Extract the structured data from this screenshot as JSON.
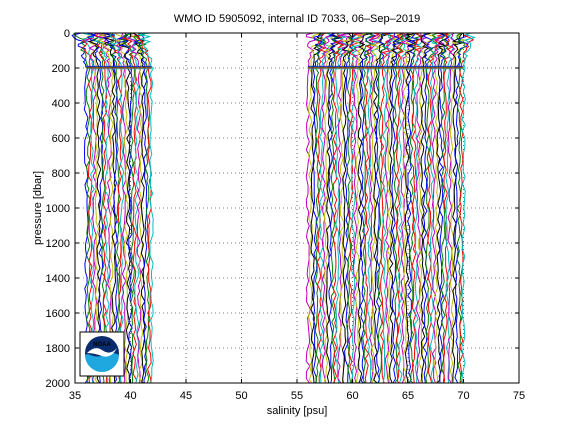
{
  "chart_data": {
    "type": "line",
    "title": "WMO ID 5905092, internal ID 7033, 06–Sep–2019",
    "xlabel": "salinity [psu]",
    "ylabel": "pressure [dbar]",
    "xlim": [
      35,
      75
    ],
    "ylim": [
      0,
      2000
    ],
    "y_reversed": true,
    "x_ticks": [
      35,
      40,
      45,
      50,
      55,
      60,
      65,
      70,
      75
    ],
    "y_ticks": [
      0,
      200,
      400,
      600,
      800,
      1000,
      1200,
      1400,
      1600,
      1800,
      2000
    ],
    "grid": "dotted",
    "profile_offset_note": "profiles plotted with successive salinity offsets",
    "profile_colors": [
      "#0000ff",
      "#008000",
      "#ff0000",
      "#00bfbf",
      "#bf00bf",
      "#bfbf00",
      "#000000"
    ],
    "series_groups": [
      {
        "deep_x_start": 36.0,
        "deep_x_end": 41.9,
        "count": 32,
        "surface_shift": -0.6,
        "bottom_dbar": 2000
      },
      {
        "deep_x_start": 56.0,
        "deep_x_end": 70.0,
        "count": 70,
        "surface_shift": 0.6,
        "bottom_dbar": 2000
      }
    ],
    "mixed_layer_dbar": 200,
    "logo": {
      "text": "NOAA",
      "colors": {
        "outer": "#0a2b6e",
        "inner": "#1fa8df",
        "bird": "#ffffff"
      }
    }
  }
}
